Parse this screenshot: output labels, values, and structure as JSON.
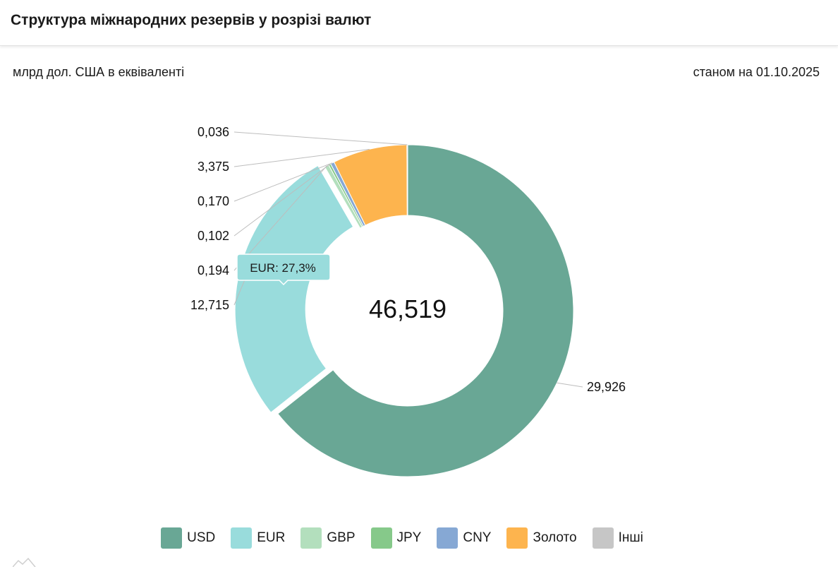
{
  "header": {
    "title": "Структура міжнародних резервів у розрізі валют"
  },
  "subtitle": {
    "unit": "млрд дол. США в еквіваленті",
    "as_of": "станом на 01.10.2025"
  },
  "chart_data": {
    "type": "pie",
    "variant": "donut",
    "total_label": "46,519",
    "series": [
      {
        "name": "USD",
        "value": 29.926,
        "label": "29,926",
        "color": "#69a795"
      },
      {
        "name": "EUR",
        "value": 12.715,
        "label": "12,715",
        "color": "#99dcdc"
      },
      {
        "name": "GBP",
        "value": 0.194,
        "label": "0,194",
        "color": "#b3dfbd"
      },
      {
        "name": "JPY",
        "value": 0.102,
        "label": "0,102",
        "color": "#86c98a"
      },
      {
        "name": "CNY",
        "value": 0.17,
        "label": "0,170",
        "color": "#86a8d4"
      },
      {
        "name": "Золото",
        "value": 3.375,
        "label": "3,375",
        "color": "#fdb44e"
      },
      {
        "name": "Інші",
        "value": 0.036,
        "label": "0,036",
        "color": "#c6c6c6"
      }
    ],
    "highlighted": "EUR",
    "tooltip": "EUR: 27,3%",
    "legend_position": "bottom"
  }
}
